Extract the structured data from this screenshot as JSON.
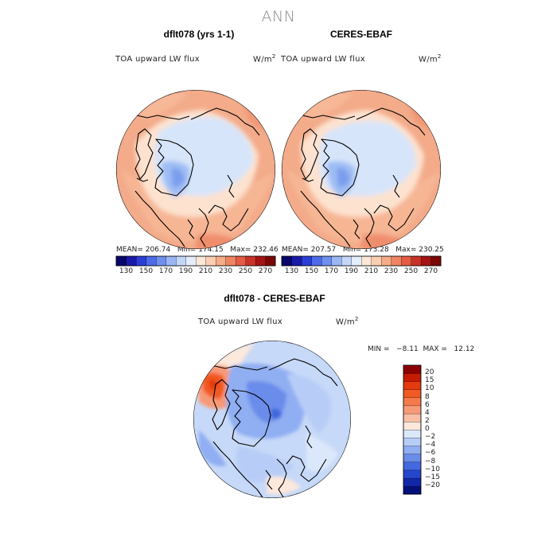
{
  "title": "ANN",
  "panels": [
    {
      "name": "dflt078 (yrs 1-1)",
      "field": "TOA upward LW flux",
      "units": "W/m",
      "units_exp": "2",
      "stats_text": "MEAN= 206.74   Min= 174.15   Max= 232.46"
    },
    {
      "name": "CERES-EBAF",
      "field": "TOA upward LW flux",
      "units": "W/m",
      "units_exp": "2",
      "stats_text": "MEAN= 207.57   Min= 173.28   Max= 230.25"
    },
    {
      "name": "dflt078 - CERES-EBAF",
      "field": "TOA upward LW flux",
      "units": "W/m",
      "units_exp": "2",
      "stats_text": "MIN =   −8.11  MAX =   12.12"
    }
  ],
  "chart_data": [
    {
      "type": "heatmap",
      "projection": "north polar stereographic",
      "title": "dflt078 (yrs 1-1)",
      "variable": "TOA upward LW flux",
      "units": "W/m2",
      "mean": 206.74,
      "min": 174.15,
      "max": 232.46,
      "colorbar_levels": [
        130,
        140,
        150,
        160,
        170,
        180,
        190,
        200,
        210,
        220,
        230,
        240,
        250,
        260,
        270
      ],
      "colorbar_labels": [
        "130",
        "150",
        "170",
        "190",
        "210",
        "230",
        "250",
        "270"
      ],
      "colorbar_colors": [
        "#07066b",
        "#1a1aa8",
        "#2c3ed8",
        "#4d6ae9",
        "#6f8ff0",
        "#9bb6f5",
        "#c3d7f8",
        "#e4eefb",
        "#fde7d7",
        "#fbcdb2",
        "#f6ac88",
        "#ef8463",
        "#e35c43",
        "#c83327",
        "#a51414",
        "#7a0606"
      ]
    },
    {
      "type": "heatmap",
      "projection": "north polar stereographic",
      "title": "CERES-EBAF",
      "variable": "TOA upward LW flux",
      "units": "W/m2",
      "mean": 207.57,
      "min": 173.28,
      "max": 230.25,
      "colorbar_levels": [
        130,
        140,
        150,
        160,
        170,
        180,
        190,
        200,
        210,
        220,
        230,
        240,
        250,
        260,
        270
      ],
      "colorbar_labels": [
        "130",
        "150",
        "170",
        "190",
        "210",
        "230",
        "250",
        "270"
      ]
    },
    {
      "type": "heatmap",
      "projection": "north polar stereographic",
      "title": "dflt078 - CERES-EBAF",
      "variable": "TOA upward LW flux",
      "units": "W/m2",
      "min": -8.11,
      "max": 12.12,
      "colorbar_levels": [
        -20,
        -15,
        -10,
        -8,
        -6,
        -4,
        -2,
        0,
        2,
        4,
        6,
        8,
        10,
        15,
        20
      ],
      "colorbar_labels": [
        "20",
        "15",
        "10",
        "8",
        "6",
        "4",
        "2",
        "0",
        "−2",
        "−4",
        "−6",
        "−8",
        "−10",
        "−15",
        "−20"
      ],
      "colorbar_colors": [
        "#8b0000",
        "#c51b00",
        "#e43a0e",
        "#f15a24",
        "#f47a4c",
        "#f79a78",
        "#f9bea6",
        "#fde8dc",
        "#dbe8fb",
        "#b7cdf7",
        "#90aef2",
        "#6a8cea",
        "#4368e0",
        "#2546cc",
        "#1227a8",
        "#050f7a"
      ]
    }
  ]
}
